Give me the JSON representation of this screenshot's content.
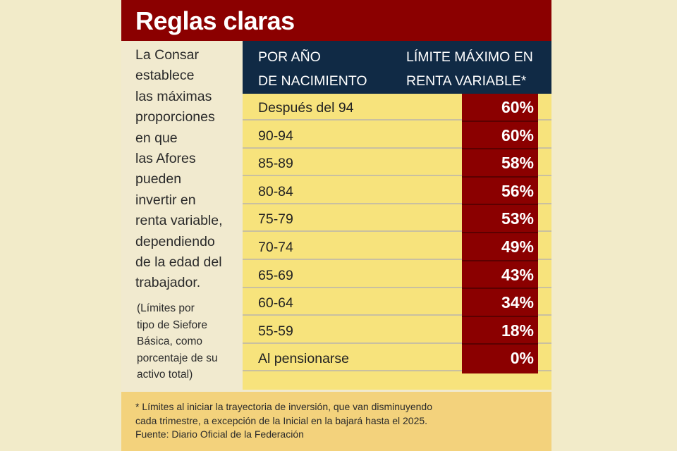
{
  "title": "Reglas claras",
  "intro_lines": [
    "La Consar",
    "establece",
    "las máximas",
    "proporciones",
    "en que",
    "las Afores",
    "pueden",
    "invertir en",
    "renta variable,",
    "dependiendo",
    "de la edad del",
    "trabajador."
  ],
  "note_lines": [
    "(Límites por",
    "tipo de Siefore",
    "Básica, como",
    "porcentaje de su",
    "activo total)"
  ],
  "colors": {
    "title_bar": "#8b0000",
    "header": "#102a45",
    "rows": "#f7e37c",
    "value_column": "#8b0000",
    "footnote_bg": "#f3d27c",
    "background": "#f1eacf"
  },
  "chart_data": {
    "type": "table",
    "columns": [
      {
        "lines": [
          "POR AÑO",
          "DE NACIMIENTO"
        ]
      },
      {
        "lines": [
          "LÍMITE MÁXIMO EN",
          "RENTA VARIABLE*"
        ]
      }
    ],
    "rows": [
      {
        "label": "Después del 94",
        "value": "60%"
      },
      {
        "label": "90-94",
        "value": "60%"
      },
      {
        "label": "85-89",
        "value": "58%"
      },
      {
        "label": "80-84",
        "value": "56%"
      },
      {
        "label": "75-79",
        "value": "53%"
      },
      {
        "label": "70-74",
        "value": "49%"
      },
      {
        "label": "65-69",
        "value": "43%"
      },
      {
        "label": "60-64",
        "value": "34%"
      },
      {
        "label": "55-59",
        "value": "18%"
      },
      {
        "label": "Al pensionarse",
        "value": "0%"
      }
    ]
  },
  "footnote": [
    "* Límites al iniciar la trayectoria de inversión, que van disminuyendo",
    "cada trimestre, a excepción de la Inicial en la bajará hasta el 2025.",
    "Fuente: Diario Oficial de la Federación"
  ]
}
